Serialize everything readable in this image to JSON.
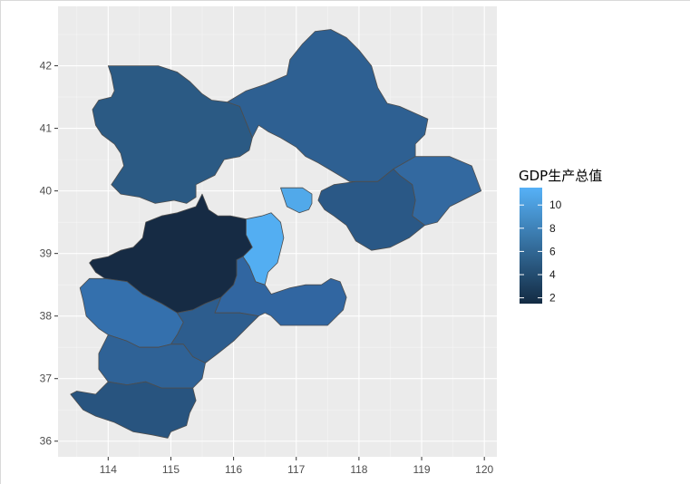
{
  "chart_data": {
    "type": "choropleth",
    "title": "",
    "xlabel": "",
    "ylabel": "",
    "xlim": [
      113.2,
      120.2
    ],
    "ylim": [
      35.75,
      42.95
    ],
    "x_ticks": [
      "114",
      "115",
      "116",
      "117",
      "118",
      "119",
      "120"
    ],
    "x_tick_values": [
      114,
      115,
      116,
      117,
      118,
      119,
      120
    ],
    "y_ticks": [
      "36",
      "37",
      "38",
      "39",
      "40",
      "41",
      "42"
    ],
    "y_tick_values": [
      36,
      37,
      38,
      39,
      40,
      41,
      42
    ],
    "grid": true,
    "panel_background": "#ebebeb",
    "border_color": "#4d4d4d",
    "legend": {
      "title": "GDP生产总值",
      "placement": "right",
      "labels": [
        "10",
        "8",
        "6",
        "4",
        "2"
      ],
      "values": [
        10,
        8,
        6,
        4,
        2
      ],
      "range": [
        1.5,
        11.5
      ],
      "color_low": "#132b43",
      "color_high": "#56b1f7"
    },
    "regions": [
      {
        "id": "zhangjiakou",
        "value": 6.3,
        "color": "#2b5a84",
        "poly": [
          [
            114.0,
            42.0
          ],
          [
            114.35,
            42.0
          ],
          [
            114.8,
            42.0
          ],
          [
            115.1,
            41.9
          ],
          [
            115.3,
            41.75
          ],
          [
            115.5,
            41.55
          ],
          [
            115.65,
            41.45
          ],
          [
            115.9,
            41.42
          ],
          [
            116.1,
            41.35
          ],
          [
            116.2,
            41.1
          ],
          [
            116.3,
            40.85
          ],
          [
            116.25,
            40.65
          ],
          [
            116.1,
            40.55
          ],
          [
            115.85,
            40.5
          ],
          [
            115.7,
            40.25
          ],
          [
            115.4,
            40.1
          ],
          [
            115.4,
            39.9
          ],
          [
            115.25,
            39.8
          ],
          [
            115.05,
            39.85
          ],
          [
            114.75,
            39.8
          ],
          [
            114.5,
            39.9
          ],
          [
            114.2,
            39.95
          ],
          [
            114.05,
            40.1
          ],
          [
            114.15,
            40.25
          ],
          [
            114.25,
            40.4
          ],
          [
            114.2,
            40.6
          ],
          [
            114.1,
            40.75
          ],
          [
            113.9,
            40.9
          ],
          [
            113.8,
            41.05
          ],
          [
            113.75,
            41.3
          ],
          [
            113.85,
            41.45
          ],
          [
            114.05,
            41.5
          ],
          [
            114.1,
            41.6
          ],
          [
            114.05,
            41.85
          ]
        ]
      },
      {
        "id": "chengde",
        "value": 6.6,
        "color": "#2e6092",
        "poly": [
          [
            115.9,
            41.42
          ],
          [
            116.2,
            41.6
          ],
          [
            116.5,
            41.7
          ],
          [
            116.85,
            41.85
          ],
          [
            116.9,
            42.1
          ],
          [
            117.1,
            42.35
          ],
          [
            117.3,
            42.55
          ],
          [
            117.55,
            42.58
          ],
          [
            117.8,
            42.45
          ],
          [
            118.0,
            42.25
          ],
          [
            118.2,
            42.0
          ],
          [
            118.3,
            41.65
          ],
          [
            118.45,
            41.4
          ],
          [
            118.65,
            41.35
          ],
          [
            119.1,
            41.15
          ],
          [
            119.05,
            40.9
          ],
          [
            118.9,
            40.75
          ],
          [
            118.9,
            40.55
          ],
          [
            118.55,
            40.35
          ],
          [
            118.3,
            40.15
          ],
          [
            117.85,
            40.15
          ],
          [
            117.6,
            40.3
          ],
          [
            117.35,
            40.45
          ],
          [
            117.15,
            40.55
          ],
          [
            117.0,
            40.7
          ],
          [
            116.75,
            40.85
          ],
          [
            116.55,
            40.95
          ],
          [
            116.4,
            41.05
          ],
          [
            116.3,
            40.85
          ],
          [
            116.2,
            41.1
          ],
          [
            116.1,
            41.35
          ]
        ]
      },
      {
        "id": "qinhuangdao",
        "value": 7.0,
        "color": "#3369a0",
        "poly": [
          [
            118.55,
            40.35
          ],
          [
            118.9,
            40.55
          ],
          [
            119.2,
            40.55
          ],
          [
            119.45,
            40.55
          ],
          [
            119.8,
            40.4
          ],
          [
            119.95,
            40.0
          ],
          [
            119.65,
            39.85
          ],
          [
            119.45,
            39.75
          ],
          [
            119.25,
            39.5
          ],
          [
            119.05,
            39.45
          ],
          [
            118.85,
            39.6
          ],
          [
            118.9,
            39.85
          ],
          [
            118.85,
            40.1
          ],
          [
            118.65,
            40.25
          ]
        ]
      },
      {
        "id": "tangshan",
        "value": 6.3,
        "color": "#2a5886",
        "poly": [
          [
            117.6,
            40.1
          ],
          [
            117.95,
            40.15
          ],
          [
            118.3,
            40.15
          ],
          [
            118.55,
            40.35
          ],
          [
            118.65,
            40.25
          ],
          [
            118.85,
            40.1
          ],
          [
            118.9,
            39.85
          ],
          [
            118.85,
            39.6
          ],
          [
            119.05,
            39.45
          ],
          [
            118.8,
            39.25
          ],
          [
            118.5,
            39.1
          ],
          [
            118.2,
            39.05
          ],
          [
            117.95,
            39.2
          ],
          [
            117.8,
            39.45
          ],
          [
            117.6,
            39.6
          ],
          [
            117.45,
            39.7
          ],
          [
            117.35,
            39.85
          ],
          [
            117.4,
            40.0
          ]
        ]
      },
      {
        "id": "baoding",
        "value": 2.0,
        "color": "#162b44",
        "poly": [
          [
            114.0,
            38.95
          ],
          [
            114.2,
            39.05
          ],
          [
            114.4,
            39.1
          ],
          [
            114.55,
            39.25
          ],
          [
            114.6,
            39.5
          ],
          [
            114.85,
            39.6
          ],
          [
            115.1,
            39.65
          ],
          [
            115.4,
            39.75
          ],
          [
            115.5,
            39.95
          ],
          [
            115.6,
            39.7
          ],
          [
            115.75,
            39.6
          ],
          [
            115.95,
            39.6
          ],
          [
            116.2,
            39.55
          ],
          [
            116.2,
            39.3
          ],
          [
            116.3,
            39.1
          ],
          [
            116.15,
            38.95
          ],
          [
            116.05,
            38.9
          ],
          [
            116.05,
            38.65
          ],
          [
            116.0,
            38.5
          ],
          [
            115.8,
            38.3
          ],
          [
            115.55,
            38.2
          ],
          [
            115.35,
            38.1
          ],
          [
            115.1,
            38.05
          ],
          [
            114.85,
            38.2
          ],
          [
            114.55,
            38.35
          ],
          [
            114.3,
            38.55
          ],
          [
            113.95,
            38.6
          ],
          [
            113.8,
            38.7
          ],
          [
            113.7,
            38.85
          ],
          [
            113.75,
            38.9
          ]
        ]
      },
      {
        "id": "langfang",
        "value": 11.0,
        "color": "#53aef2",
        "poly": [
          [
            116.2,
            39.55
          ],
          [
            116.45,
            39.6
          ],
          [
            116.6,
            39.65
          ],
          [
            116.75,
            39.5
          ],
          [
            116.8,
            39.25
          ],
          [
            116.75,
            39.05
          ],
          [
            116.7,
            38.85
          ],
          [
            116.55,
            38.7
          ],
          [
            116.5,
            38.5
          ],
          [
            116.35,
            38.55
          ],
          [
            116.25,
            38.8
          ],
          [
            116.15,
            38.95
          ],
          [
            116.3,
            39.1
          ],
          [
            116.2,
            39.3
          ]
        ]
      },
      {
        "id": "sanhe",
        "value": 10.8,
        "color": "#51a9ea",
        "poly": [
          [
            116.75,
            40.05
          ],
          [
            116.9,
            40.05
          ],
          [
            117.1,
            40.05
          ],
          [
            117.25,
            39.95
          ],
          [
            117.25,
            39.8
          ],
          [
            117.2,
            39.7
          ],
          [
            117.05,
            39.65
          ],
          [
            116.85,
            39.75
          ],
          [
            116.8,
            39.9
          ]
        ]
      },
      {
        "id": "cangzhou",
        "value": 6.9,
        "color": "#3166a1",
        "poly": [
          [
            116.0,
            38.5
          ],
          [
            116.05,
            38.65
          ],
          [
            116.05,
            38.9
          ],
          [
            116.15,
            38.95
          ],
          [
            116.25,
            38.8
          ],
          [
            116.35,
            38.55
          ],
          [
            116.5,
            38.5
          ],
          [
            116.6,
            38.35
          ],
          [
            116.9,
            38.45
          ],
          [
            117.15,
            38.5
          ],
          [
            117.4,
            38.5
          ],
          [
            117.55,
            38.6
          ],
          [
            117.7,
            38.55
          ],
          [
            117.8,
            38.3
          ],
          [
            117.75,
            38.1
          ],
          [
            117.5,
            37.85
          ],
          [
            117.25,
            37.85
          ],
          [
            117.0,
            37.85
          ],
          [
            116.75,
            37.85
          ],
          [
            116.6,
            38.0
          ],
          [
            116.5,
            38.05
          ],
          [
            116.4,
            38.0
          ],
          [
            116.1,
            38.05
          ],
          [
            115.9,
            38.05
          ],
          [
            115.7,
            38.05
          ],
          [
            115.8,
            38.3
          ]
        ]
      },
      {
        "id": "shijiazhuang",
        "value": 7.0,
        "color": "#3470ad",
        "poly": [
          [
            113.95,
            38.6
          ],
          [
            114.3,
            38.55
          ],
          [
            114.55,
            38.35
          ],
          [
            114.85,
            38.2
          ],
          [
            115.1,
            38.05
          ],
          [
            115.2,
            37.9
          ],
          [
            115.1,
            37.7
          ],
          [
            115.0,
            37.55
          ],
          [
            114.8,
            37.5
          ],
          [
            114.5,
            37.5
          ],
          [
            114.3,
            37.6
          ],
          [
            114.0,
            37.7
          ],
          [
            113.85,
            37.8
          ],
          [
            113.65,
            38.0
          ],
          [
            113.6,
            38.25
          ],
          [
            113.55,
            38.45
          ],
          [
            113.7,
            38.6
          ]
        ]
      },
      {
        "id": "hengshui",
        "value": 6.4,
        "color": "#2d5d8e",
        "poly": [
          [
            115.1,
            38.05
          ],
          [
            115.35,
            38.1
          ],
          [
            115.55,
            38.2
          ],
          [
            115.8,
            38.3
          ],
          [
            115.7,
            38.05
          ],
          [
            115.9,
            38.05
          ],
          [
            116.1,
            38.05
          ],
          [
            116.4,
            38.0
          ],
          [
            116.25,
            37.85
          ],
          [
            116.0,
            37.6
          ],
          [
            115.75,
            37.4
          ],
          [
            115.55,
            37.25
          ],
          [
            115.35,
            37.35
          ],
          [
            115.2,
            37.55
          ],
          [
            115.0,
            37.55
          ],
          [
            115.1,
            37.7
          ],
          [
            115.2,
            37.9
          ]
        ]
      },
      {
        "id": "xingtai",
        "value": 6.6,
        "color": "#2f6296",
        "poly": [
          [
            114.0,
            37.7
          ],
          [
            114.3,
            37.6
          ],
          [
            114.5,
            37.5
          ],
          [
            114.8,
            37.5
          ],
          [
            115.0,
            37.55
          ],
          [
            115.2,
            37.55
          ],
          [
            115.35,
            37.35
          ],
          [
            115.55,
            37.25
          ],
          [
            115.5,
            37.0
          ],
          [
            115.35,
            36.85
          ],
          [
            115.1,
            36.85
          ],
          [
            114.85,
            36.85
          ],
          [
            114.6,
            36.95
          ],
          [
            114.3,
            36.9
          ],
          [
            114.0,
            36.95
          ],
          [
            113.85,
            37.15
          ],
          [
            113.85,
            37.4
          ]
        ]
      },
      {
        "id": "handan",
        "value": 5.9,
        "color": "#28547f",
        "poly": [
          [
            113.5,
            36.8
          ],
          [
            113.8,
            36.75
          ],
          [
            114.0,
            36.95
          ],
          [
            114.3,
            36.9
          ],
          [
            114.6,
            36.95
          ],
          [
            114.85,
            36.85
          ],
          [
            115.1,
            36.85
          ],
          [
            115.35,
            36.85
          ],
          [
            115.4,
            36.65
          ],
          [
            115.3,
            36.45
          ],
          [
            115.25,
            36.25
          ],
          [
            115.0,
            36.15
          ],
          [
            114.95,
            36.05
          ],
          [
            114.7,
            36.1
          ],
          [
            114.4,
            36.15
          ],
          [
            114.1,
            36.3
          ],
          [
            113.8,
            36.4
          ],
          [
            113.6,
            36.5
          ],
          [
            113.4,
            36.75
          ]
        ]
      }
    ]
  }
}
